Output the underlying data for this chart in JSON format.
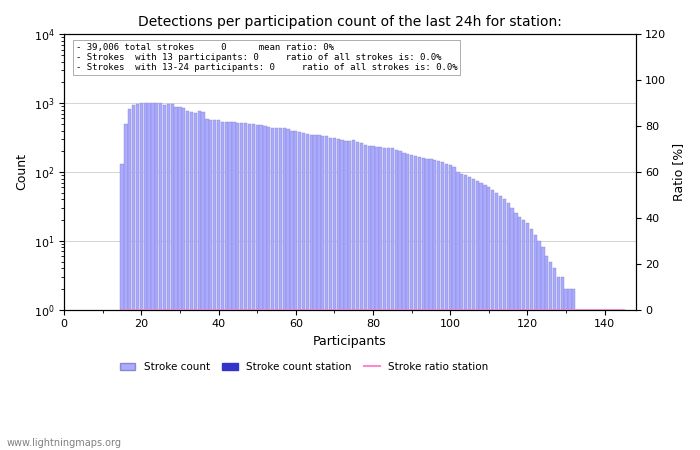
{
  "title": "Detections per participation count of the last 24h for station:",
  "xlabel": "Participants",
  "ylabel_left": "Count",
  "ylabel_right": "Ratio [%]",
  "annotation_lines": [
    "39,006 total strokes     0      mean ratio: 0%",
    "Strokes  with 13 participants: 0     ratio of all strokes is: 0.0%",
    "Strokes  with 13-24 participants: 0     ratio of all strokes is: 0.0%"
  ],
  "bar_color": "#aaaaff",
  "bar_edge_color": "#8888cc",
  "station_bar_color": "#3333cc",
  "ratio_line_color": "#ff88cc",
  "watermark": "www.lightningmaps.org",
  "xlim": [
    0,
    148
  ],
  "ylim_log": [
    1,
    10000
  ],
  "ylim_right": [
    0,
    120
  ],
  "bar_x": [
    15,
    16,
    17,
    18,
    19,
    20,
    21,
    22,
    23,
    24,
    25,
    26,
    27,
    28,
    29,
    30,
    31,
    32,
    33,
    34,
    35,
    36,
    37,
    38,
    39,
    40,
    41,
    42,
    43,
    44,
    45,
    46,
    47,
    48,
    49,
    50,
    51,
    52,
    53,
    54,
    55,
    56,
    57,
    58,
    59,
    60,
    61,
    62,
    63,
    64,
    65,
    66,
    67,
    68,
    69,
    70,
    71,
    72,
    73,
    74,
    75,
    76,
    77,
    78,
    79,
    80,
    81,
    82,
    83,
    84,
    85,
    86,
    87,
    88,
    89,
    90,
    91,
    92,
    93,
    94,
    95,
    96,
    97,
    98,
    99,
    100,
    101,
    102,
    103,
    104,
    105,
    106,
    107,
    108,
    109,
    110,
    111,
    112,
    113,
    114,
    115,
    116,
    117,
    118,
    119,
    120,
    121,
    122,
    123,
    124,
    125,
    126,
    127,
    128,
    129,
    130,
    131,
    132,
    133,
    134,
    135,
    136,
    137,
    138,
    139,
    140,
    141,
    142,
    143,
    144,
    145
  ],
  "bar_y": [
    130,
    500,
    820,
    950,
    980,
    1000,
    990,
    990,
    1000,
    990,
    990,
    950,
    960,
    970,
    880,
    870,
    860,
    760,
    740,
    730,
    760,
    750,
    580,
    570,
    570,
    560,
    530,
    540,
    530,
    530,
    520,
    510,
    510,
    500,
    490,
    480,
    480,
    460,
    450,
    440,
    440,
    430,
    430,
    420,
    400,
    390,
    380,
    370,
    360,
    350,
    350,
    340,
    330,
    330,
    310,
    310,
    300,
    290,
    280,
    280,
    290,
    270,
    260,
    250,
    240,
    240,
    230,
    230,
    220,
    220,
    220,
    210,
    200,
    190,
    180,
    175,
    170,
    165,
    160,
    155,
    155,
    150,
    145,
    140,
    130,
    125,
    120,
    100,
    95,
    90,
    85,
    80,
    75,
    70,
    65,
    60,
    55,
    50,
    45,
    40,
    35,
    30,
    25,
    22,
    20,
    18,
    15,
    12,
    10,
    8,
    6,
    5,
    4,
    3,
    3,
    2,
    2,
    2,
    1,
    1,
    1,
    1,
    1,
    1,
    1,
    1,
    1,
    1,
    1,
    1,
    1
  ]
}
